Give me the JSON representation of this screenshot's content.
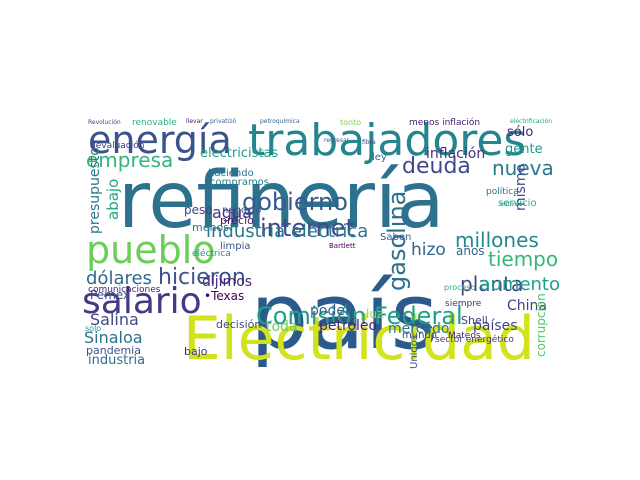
{
  "words": [
    {
      "text": "refinería",
      "color": "#2c718e"
    },
    {
      "text": "país",
      "color": "#2c5a8c"
    },
    {
      "text": "Electricidad",
      "color": "#d2e21b"
    },
    {
      "text": "trabajadores",
      "color": "#25858e"
    },
    {
      "text": "energía",
      "color": "#3b528b"
    },
    {
      "text": "pueblo",
      "color": "#6ccd5a"
    },
    {
      "text": "salario",
      "color": "#443983"
    },
    {
      "text": "Comisión Federal",
      "color": "#1fa187"
    },
    {
      "text": "internet",
      "color": "#3e4989"
    },
    {
      "text": "industria eléctrica",
      "color": "#2a788e"
    },
    {
      "text": "gobierno",
      "color": "#365c8d"
    },
    {
      "text": "empresa",
      "color": "#31b57b"
    },
    {
      "text": "millones",
      "color": "#23888e"
    },
    {
      "text": "hicieron",
      "color": "#3b528b"
    },
    {
      "text": "gasolina",
      "color": "#2d708e"
    },
    {
      "text": "deuda",
      "color": "#3e4a89"
    },
    {
      "text": "nueva",
      "color": "#2a788e"
    },
    {
      "text": "tiempo",
      "color": "#35b779"
    },
    {
      "text": "planta",
      "color": "#3f4889"
    },
    {
      "text": "dólares",
      "color": "#31688e"
    },
    {
      "text": "aumento",
      "color": "#1fa188"
    },
    {
      "text": "inflación",
      "color": "#46327e"
    },
    {
      "text": "mismo",
      "color": "#3b528b"
    },
    {
      "text": "presupuesto",
      "color": "#2a788e"
    },
    {
      "text": "China",
      "color": "#433e85"
    },
    {
      "text": "Salina",
      "color": "#3e4989"
    },
    {
      "text": "Sinaloa",
      "color": "#2c728e"
    },
    {
      "text": "petróleo",
      "color": "#482173"
    },
    {
      "text": "mercado",
      "color": "#2a778e"
    },
    {
      "text": "poder",
      "color": "#35608d"
    },
    {
      "text": "toda",
      "color": "#6ece58"
    },
    {
      "text": "países",
      "color": "#404688"
    },
    {
      "text": "agua",
      "color": "#46327e"
    },
    {
      "text": "Pemex",
      "color": "#3c508b"
    },
    {
      "text": "industria",
      "color": "#2b748e"
    },
    {
      "text": "electricistas",
      "color": "#1f9e89"
    },
    {
      "text": "menos inflación",
      "color": "#482071"
    },
    {
      "text": "sólo",
      "color": "#481f70"
    },
    {
      "text": "gente",
      "color": "#1f988b"
    },
    {
      "text": "abajo",
      "color": "#22a884"
    },
    {
      "text": "peso",
      "color": "#404688"
    },
    {
      "text": "hizo",
      "color": "#31668e"
    },
    {
      "text": "años",
      "color": "#355f8d"
    },
    {
      "text": "dijimos",
      "color": "#482677"
    },
    {
      "text": "•Texas",
      "color": "#440154"
    },
    {
      "text": "luz",
      "color": "#94d840"
    },
    {
      "text": "Shell",
      "color": "#414287"
    },
    {
      "text": "pandemia",
      "color": "#3b528b"
    },
    {
      "text": "decisión",
      "color": "#3e4989"
    },
    {
      "text": "bajo",
      "color": "#472d7b"
    },
    {
      "text": "Unidos",
      "color": "#39568c"
    },
    {
      "text": "Saben",
      "color": "#3a548c"
    },
    {
      "text": "ley",
      "color": "#2f6c8e"
    },
    {
      "text": "limpia",
      "color": "#3b518b"
    },
    {
      "text": "precio",
      "color": "#481a6c"
    },
    {
      "text": "negocio",
      "color": "#3a538b"
    },
    {
      "text": "menos",
      "color": "#2b758e"
    },
    {
      "text": "renovable",
      "color": "#2db27d"
    },
    {
      "text": "devaluación",
      "color": "#453781"
    },
    {
      "text": "comunicaciones",
      "color": "#481f70"
    },
    {
      "text": "haciendo",
      "color": "#2a768e"
    },
    {
      "text": "compramos",
      "color": "#287d8e"
    },
    {
      "text": "eléctrica",
      "color": "#1f958b"
    },
    {
      "text": "mundo",
      "color": "#3f4788"
    },
    {
      "text": "Mateos",
      "color": "#482475"
    },
    {
      "text": "corrupción",
      "color": "#56c667"
    },
    {
      "text": "política",
      "color": "#2e6f8e"
    },
    {
      "text": "servicio",
      "color": "#27ad81"
    },
    {
      "text": "sector energético",
      "color": "#453882"
    },
    {
      "text": "siempre",
      "color": "#472f7d"
    },
    {
      "text": "solo",
      "color": "#1f9a8a"
    },
    {
      "text": "Revolución",
      "color": "#3f4889"
    },
    {
      "text": "llevar",
      "color": "#481769"
    },
    {
      "text": "privatizó",
      "color": "#365d8d"
    },
    {
      "text": "petroquímica",
      "color": "#33638d"
    },
    {
      "text": "tonto",
      "color": "#7fd34e"
    },
    {
      "text": "electrificación",
      "color": "#20a486"
    },
    {
      "text": "regresar",
      "color": "#38588c"
    },
    {
      "text": "fibra",
      "color": "#3e4a89"
    },
    {
      "text": "mínimo",
      "color": "#1e9b8a"
    },
    {
      "text": "Bartlett",
      "color": "#440154"
    },
    {
      "text": "proceso",
      "color": "#2ab07f"
    }
  ]
}
